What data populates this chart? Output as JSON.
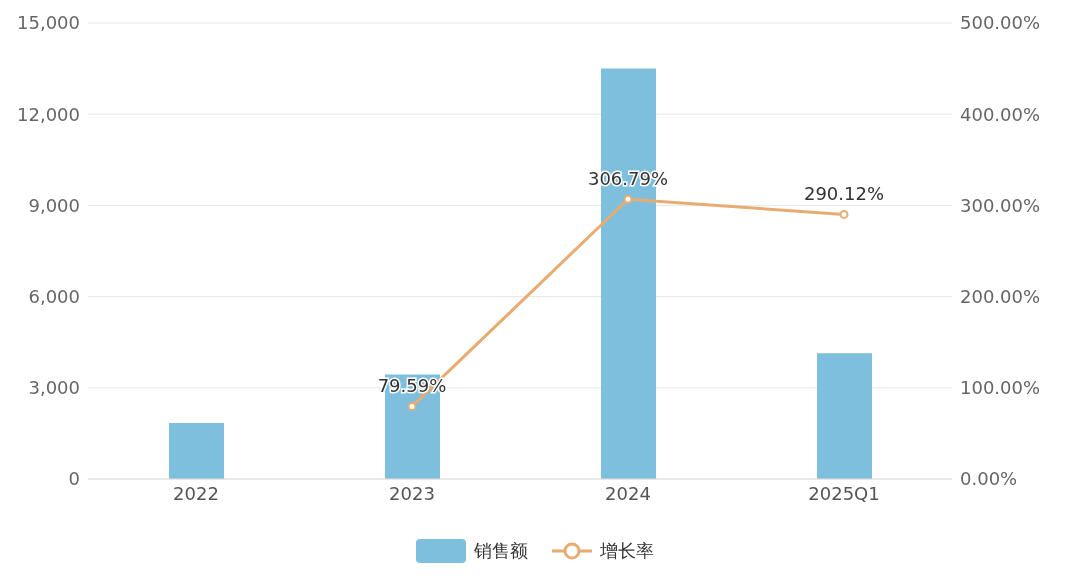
{
  "chart_data": {
    "type": "bar",
    "categories": [
      "2022",
      "2023",
      "2024",
      "2025Q1"
    ],
    "series": [
      {
        "name": "销售额",
        "color": "#7dbfdc",
        "values": [
          1840,
          3440,
          13500,
          4140
        ]
      },
      {
        "name": "增长率",
        "type": "line",
        "axis": "y2",
        "color": "#e8ac72",
        "values": [
          null,
          79.59,
          306.79,
          290.12
        ],
        "value_labels": [
          null,
          "79.59%",
          "306.79%",
          "290.12%"
        ]
      }
    ],
    "ylim": [
      0,
      15000
    ],
    "yticks": [
      0,
      {
        "value": 3000,
        "label": "3,000"
      },
      {
        "value": 6000,
        "label": "6,000"
      },
      {
        "value": 9000,
        "label": "9,000"
      },
      {
        "value": 12000,
        "label": "12,000"
      },
      {
        "value": 15000,
        "label": "15,000"
      }
    ],
    "y2lim": [
      0,
      500
    ],
    "y2ticks": [
      {
        "value": 0,
        "label": "0.00%"
      },
      {
        "value": 100,
        "label": "100.00%"
      },
      {
        "value": 200,
        "label": "200.00%"
      },
      {
        "value": 300,
        "label": "300.00%"
      },
      {
        "value": 400,
        "label": "400.00%"
      },
      {
        "value": 500,
        "label": "500.00%"
      }
    ],
    "grid": "y",
    "legend": "bottom",
    "marker": "circle"
  }
}
